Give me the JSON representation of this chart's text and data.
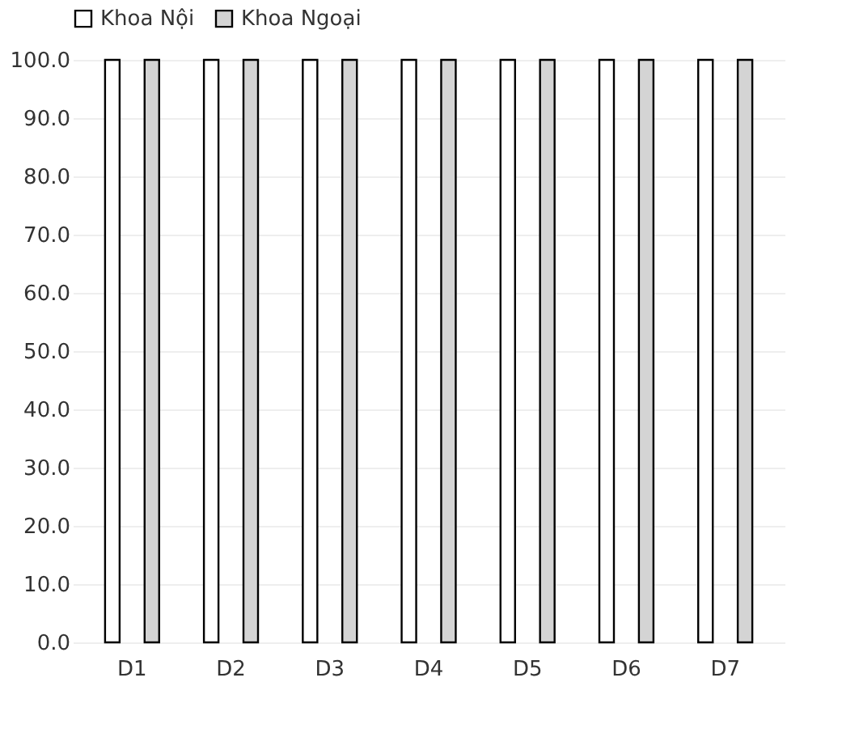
{
  "chart_data": {
    "type": "bar",
    "categories": [
      "D1",
      "D2",
      "D3",
      "D4",
      "D5",
      "D6",
      "D7"
    ],
    "series": [
      {
        "name": "Khoa Nội",
        "color": "#ffffff",
        "values": [
          100,
          100,
          100,
          100,
          100,
          100,
          100
        ]
      },
      {
        "name": "Khoa Ngoại",
        "color": "#d4d4d4",
        "values": [
          100,
          100,
          100,
          100,
          100,
          100,
          100
        ]
      }
    ],
    "ylim": [
      0,
      100
    ],
    "yticks": [
      {
        "value": 0,
        "label": "0.0"
      },
      {
        "value": 10,
        "label": "10.0"
      },
      {
        "value": 20,
        "label": "20.0"
      },
      {
        "value": 30,
        "label": "30.0"
      },
      {
        "value": 40,
        "label": "40.0"
      },
      {
        "value": 50,
        "label": "50.0"
      },
      {
        "value": 60,
        "label": "60.0"
      },
      {
        "value": 70,
        "label": "70.0"
      },
      {
        "value": 80,
        "label": "80.0"
      },
      {
        "value": 90,
        "label": "90.0"
      },
      {
        "value": 100,
        "label": "100.0"
      }
    ],
    "grid": "y",
    "legend": "top"
  }
}
